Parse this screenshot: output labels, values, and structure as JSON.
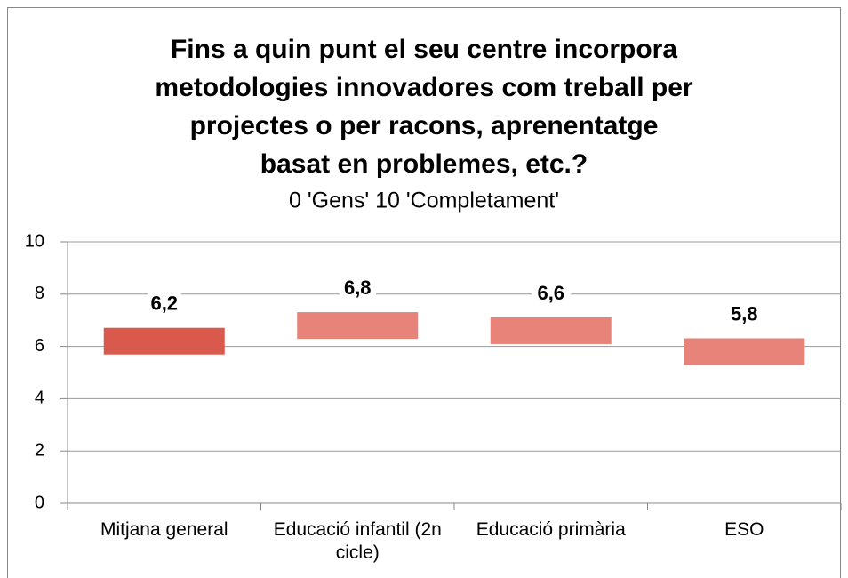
{
  "chart_data": {
    "type": "bar",
    "title": [
      "Fins a quin punt el seu centre incorpora",
      "metodologies innovadores com treball per",
      "projectes o per racons, aprenentatge",
      "basat en problemes, etc.?"
    ],
    "subtitle": "0 'Gens' 10 'Completament'",
    "categories": [
      "Mitjana general",
      "Educació infantil (2n cicle)",
      "Educació primària",
      "ESO"
    ],
    "values": [
      6.2,
      6.8,
      6.6,
      5.8
    ],
    "value_labels": [
      "6,2",
      "6,8",
      "6,6",
      "5,8"
    ],
    "colors": [
      "#d9594c",
      "#e8837a",
      "#e8837a",
      "#e8837a"
    ],
    "ylim": [
      0,
      10
    ],
    "yticks": [
      0,
      2,
      4,
      6,
      8,
      10
    ],
    "grid": true
  }
}
